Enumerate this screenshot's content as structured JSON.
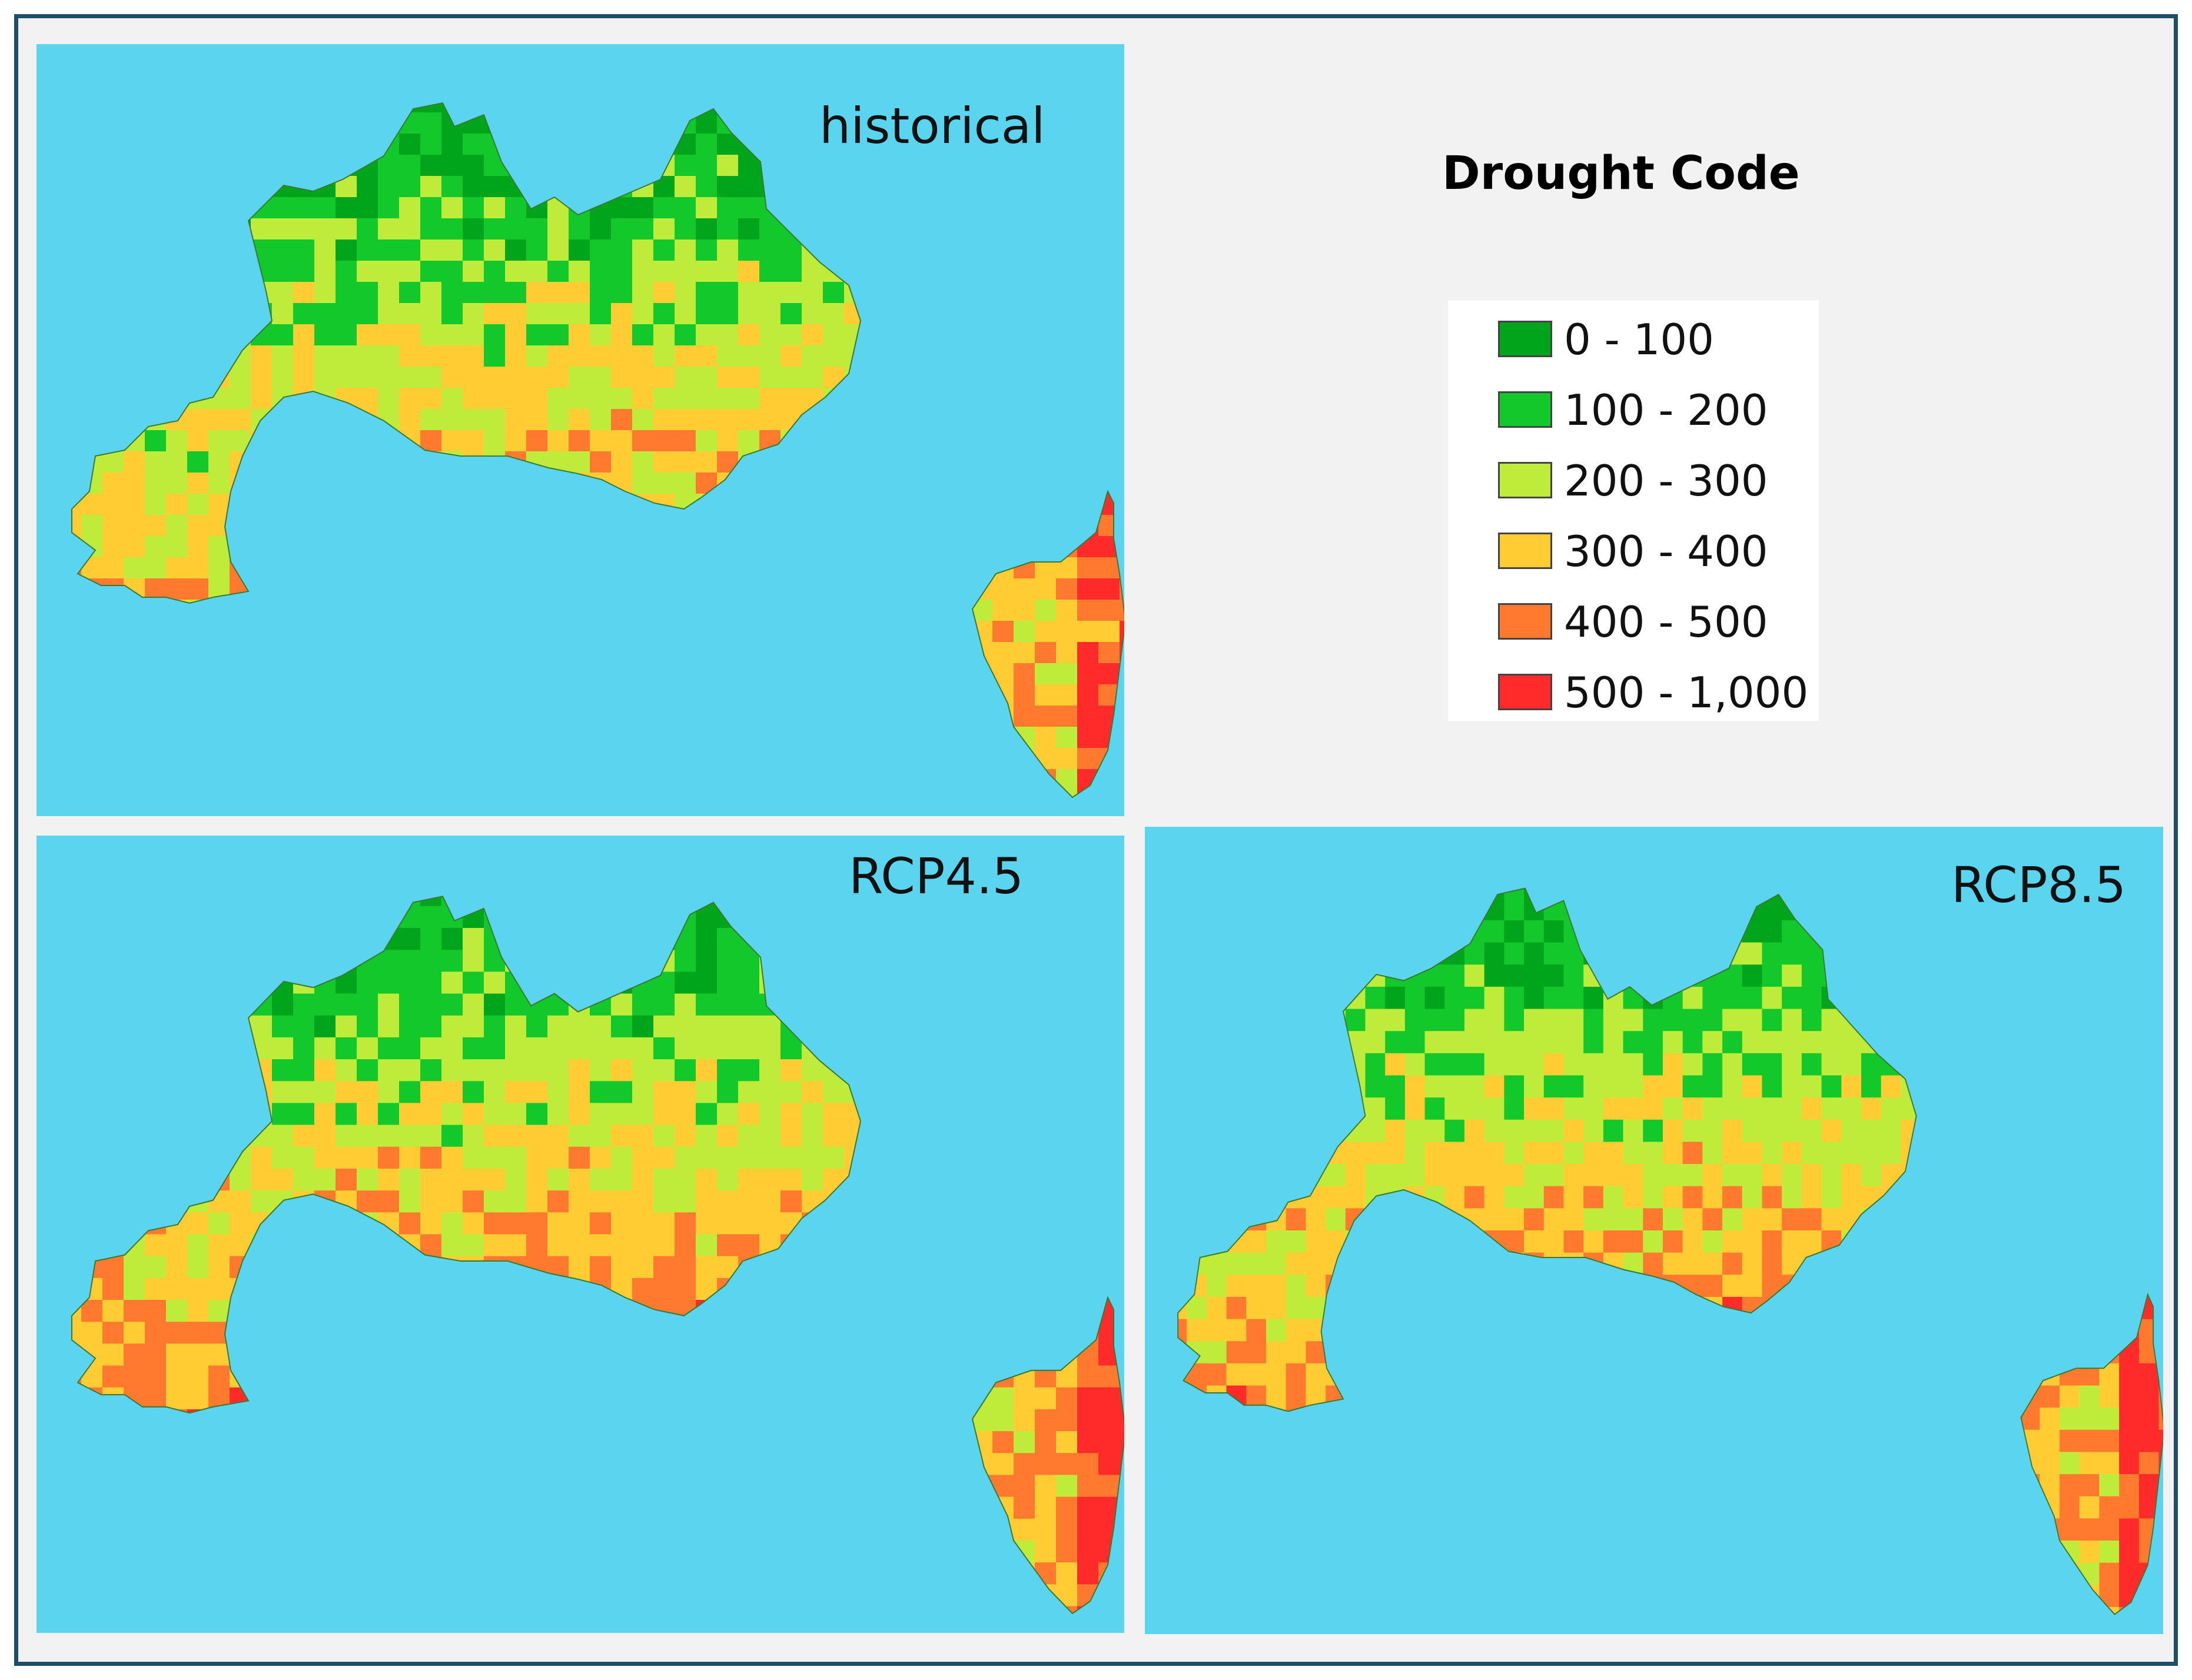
{
  "legend": {
    "title": "Drought Code",
    "items": [
      {
        "label": "0 - 100",
        "color": "#00a51c"
      },
      {
        "label": "100 - 200",
        "color": "#12c82a"
      },
      {
        "label": "200 - 300",
        "color": "#bfec3a"
      },
      {
        "label": "300 - 400",
        "color": "#ffcc33"
      },
      {
        "label": "400 - 500",
        "color": "#ff7a2e"
      },
      {
        "label": "500 - 1,000",
        "color": "#ff2a2a"
      }
    ]
  },
  "panels": [
    {
      "label": "historical",
      "region_mainland_dominant_classes": [
        "0 - 100",
        "100 - 200",
        "200 - 300",
        "300 - 400"
      ],
      "island_dominant_classes": [
        "200 - 300",
        "300 - 400",
        "400 - 500",
        "500 - 1,000"
      ]
    },
    {
      "label": "RCP4.5",
      "region_mainland_dominant_classes": [
        "0 - 100",
        "100 - 200",
        "200 - 300",
        "300 - 400",
        "400 - 500"
      ],
      "island_dominant_classes": [
        "300 - 400",
        "400 - 500",
        "500 - 1,000"
      ]
    },
    {
      "label": "RCP8.5",
      "region_mainland_dominant_classes": [
        "0 - 100",
        "100 - 200",
        "200 - 300",
        "300 - 400",
        "400 - 500"
      ],
      "island_dominant_classes": [
        "300 - 400",
        "400 - 500",
        "500 - 1,000"
      ]
    }
  ],
  "colors": {
    "sea": "#5bd5ef",
    "background": "#f2f2f2",
    "frame": "#1f4e6b"
  }
}
